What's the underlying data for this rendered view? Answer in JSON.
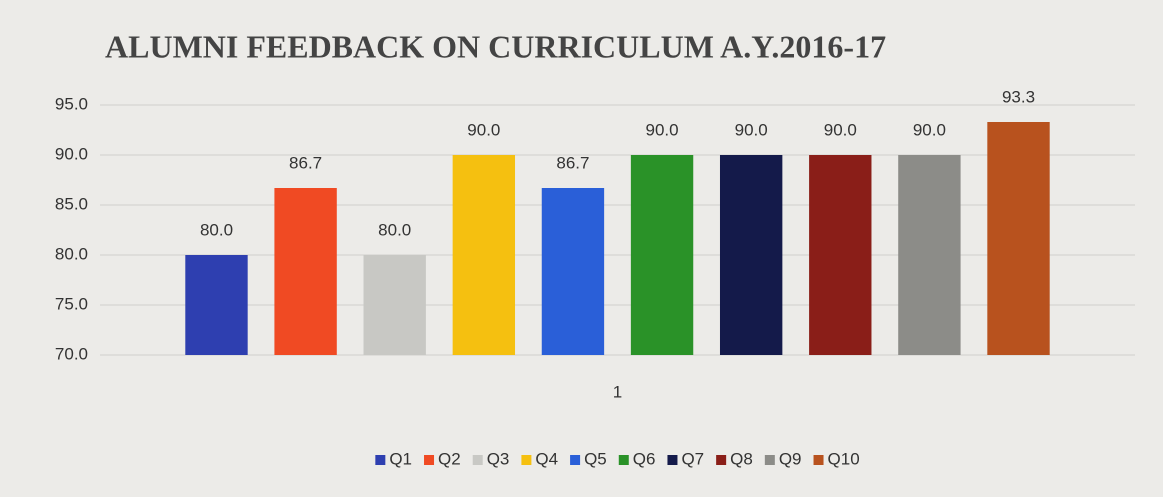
{
  "chart_data": {
    "type": "bar",
    "title": "ALUMNI FEEDBACK ON CURRICULUM A.Y.2016-17",
    "categories": [
      "1"
    ],
    "series": [
      {
        "name": "Q1",
        "color": "#2e3fb0",
        "values": [
          80
        ],
        "value_labels": [
          "80.0"
        ]
      },
      {
        "name": "Q2",
        "color": "#f04a23",
        "values": [
          86.7
        ],
        "value_labels": [
          "86.7"
        ]
      },
      {
        "name": "Q3",
        "color": "#c8c8c4",
        "values": [
          80
        ],
        "value_labels": [
          "80.0"
        ]
      },
      {
        "name": "Q4",
        "color": "#f5c010",
        "values": [
          90
        ],
        "value_labels": [
          "90.0"
        ]
      },
      {
        "name": "Q5",
        "color": "#2a5fd8",
        "values": [
          86.7
        ],
        "value_labels": [
          "86.7"
        ]
      },
      {
        "name": "Q6",
        "color": "#2a9228",
        "values": [
          90
        ],
        "value_labels": [
          "90.0"
        ]
      },
      {
        "name": "Q7",
        "color": "#141a4a",
        "values": [
          90
        ],
        "value_labels": [
          "90.0"
        ]
      },
      {
        "name": "Q8",
        "color": "#8a1e18",
        "values": [
          90
        ],
        "value_labels": [
          "90.0"
        ]
      },
      {
        "name": "Q9",
        "color": "#8c8c88",
        "values": [
          90
        ],
        "value_labels": [
          "90.0"
        ]
      },
      {
        "name": "Q10",
        "color": "#b8521e",
        "values": [
          93.3
        ],
        "value_labels": [
          "93.3"
        ]
      }
    ],
    "ylim": [
      70,
      95
    ],
    "yticks": [
      {
        "value": 70,
        "label": "70.0"
      },
      {
        "value": 75,
        "label": "75.0"
      },
      {
        "value": 80,
        "label": "80.0"
      },
      {
        "value": 85,
        "label": "85.0"
      },
      {
        "value": 90,
        "label": "90.0"
      },
      {
        "value": 95,
        "label": "95.0"
      }
    ],
    "grid": true,
    "legend": "bottom"
  }
}
